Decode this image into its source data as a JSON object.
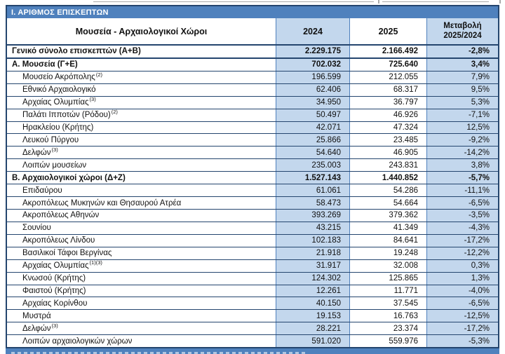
{
  "document": {
    "section_title": "Ι. ΑΡΙΘΜΟΣ ΕΠΙΣΚΕΠΤΩΝ"
  },
  "colors": {
    "accent_blue": "#4F81BD",
    "light_blue": "#C3D7ED",
    "border_navy": "#24456E"
  },
  "table": {
    "header": {
      "name": "Μουσεία - Αρχαιολογικοί Χώροι",
      "y2024": "2024",
      "y2025": "2025",
      "change_line1": "Μεταβολή",
      "change_line2": "2025/2024"
    },
    "rows": [
      {
        "label": "Γενικό σύνολο επισκεπτών (Α+Β)",
        "sup": "",
        "v2024": "2.229.175",
        "v2025": "2.166.492",
        "change": "-2,8%",
        "style": "total"
      },
      {
        "label": "Α. Μουσεία (Γ+Ε)",
        "sup": "",
        "v2024": "702.032",
        "v2025": "725.640",
        "change": "3,4%",
        "style": "section"
      },
      {
        "label": "Μουσείο Ακρόπολης",
        "sup": "(2)",
        "v2024": "196.599",
        "v2025": "212.055",
        "change": "7,9%",
        "style": "item"
      },
      {
        "label": "Εθνικό Αρχαιολογικό",
        "sup": "",
        "v2024": "62.406",
        "v2025": "68.317",
        "change": "9,5%",
        "style": "item"
      },
      {
        "label": "Αρχαίας Ολυμπίας ",
        "sup": "(3)",
        "v2024": "34.950",
        "v2025": "36.797",
        "change": "5,3%",
        "style": "item"
      },
      {
        "label": "Παλάτι Ιπποτών (Ρόδου) ",
        "sup": "(2)",
        "v2024": "50.497",
        "v2025": "46.926",
        "change": "-7,1%",
        "style": "item"
      },
      {
        "label": "Ηρακλείου (Κρήτης)",
        "sup": "",
        "v2024": "42.071",
        "v2025": "47.324",
        "change": "12,5%",
        "style": "item"
      },
      {
        "label": "Λευκού Πύργου",
        "sup": "",
        "v2024": "25.866",
        "v2025": "23.485",
        "change": "-9,2%",
        "style": "item"
      },
      {
        "label": "Δελφών ",
        "sup": "(3)",
        "v2024": "54.640",
        "v2025": "46.905",
        "change": "-14,2%",
        "style": "item"
      },
      {
        "label": "Λοιπών μουσείων",
        "sup": "",
        "v2024": "235.003",
        "v2025": "243.831",
        "change": "3,8%",
        "style": "item"
      },
      {
        "label": "Β. Αρχαιολογικοί χώροι (Δ+Ζ)",
        "sup": "",
        "v2024": "1.527.143",
        "v2025": "1.440.852",
        "change": "-5,7%",
        "style": "section"
      },
      {
        "label": "Επιδαύρου",
        "sup": "",
        "v2024": "61.061",
        "v2025": "54.286",
        "change": "-11,1%",
        "style": "item"
      },
      {
        "label": "Ακροπόλεως Μυκηνών και Θησαυρού Ατρέα",
        "sup": "",
        "v2024": "58.473",
        "v2025": "54.664",
        "change": "-6,5%",
        "style": "item"
      },
      {
        "label": "Ακροπόλεως Αθηνών",
        "sup": "",
        "v2024": "393.269",
        "v2025": "379.362",
        "change": "-3,5%",
        "style": "item"
      },
      {
        "label": "Σουνίου",
        "sup": "",
        "v2024": "43.215",
        "v2025": "41.349",
        "change": "-4,3%",
        "style": "item"
      },
      {
        "label": "Ακροπόλεως Λίνδου",
        "sup": "",
        "v2024": "102.183",
        "v2025": "84.641",
        "change": "-17,2%",
        "style": "item"
      },
      {
        "label": "Βασιλικοί Τάφοι Βεργίνας",
        "sup": "",
        "v2024": "21.918",
        "v2025": "19.248",
        "change": "-12,2%",
        "style": "item"
      },
      {
        "label": "Αρχαίας Ολυμπίας ",
        "sup": "(1)(3)",
        "v2024": "31.917",
        "v2025": "32.008",
        "change": "0,3%",
        "style": "item"
      },
      {
        "label": "Κνωσού (Κρήτης)",
        "sup": "",
        "v2024": "124.302",
        "v2025": "125.865",
        "change": "1,3%",
        "style": "item"
      },
      {
        "label": "Φαιστού (Κρήτης)",
        "sup": "",
        "v2024": "12.261",
        "v2025": "11.771",
        "change": "-4,0%",
        "style": "item"
      },
      {
        "label": "Αρχαίας Κορίνθου",
        "sup": "",
        "v2024": "40.150",
        "v2025": "37.545",
        "change": "-6,5%",
        "style": "item"
      },
      {
        "label": "Μυστρά",
        "sup": "",
        "v2024": "19.153",
        "v2025": "16.763",
        "change": "-12,5%",
        "style": "item"
      },
      {
        "label": "Δελφών ",
        "sup": "(3)",
        "v2024": "28.221",
        "v2025": "23.374",
        "change": "-17,2%",
        "style": "item"
      },
      {
        "label": "Λοιπών αρχαιολογικών χώρων",
        "sup": "",
        "v2024": "591.020",
        "v2025": "559.976",
        "change": "-5,3%",
        "style": "item"
      }
    ]
  }
}
